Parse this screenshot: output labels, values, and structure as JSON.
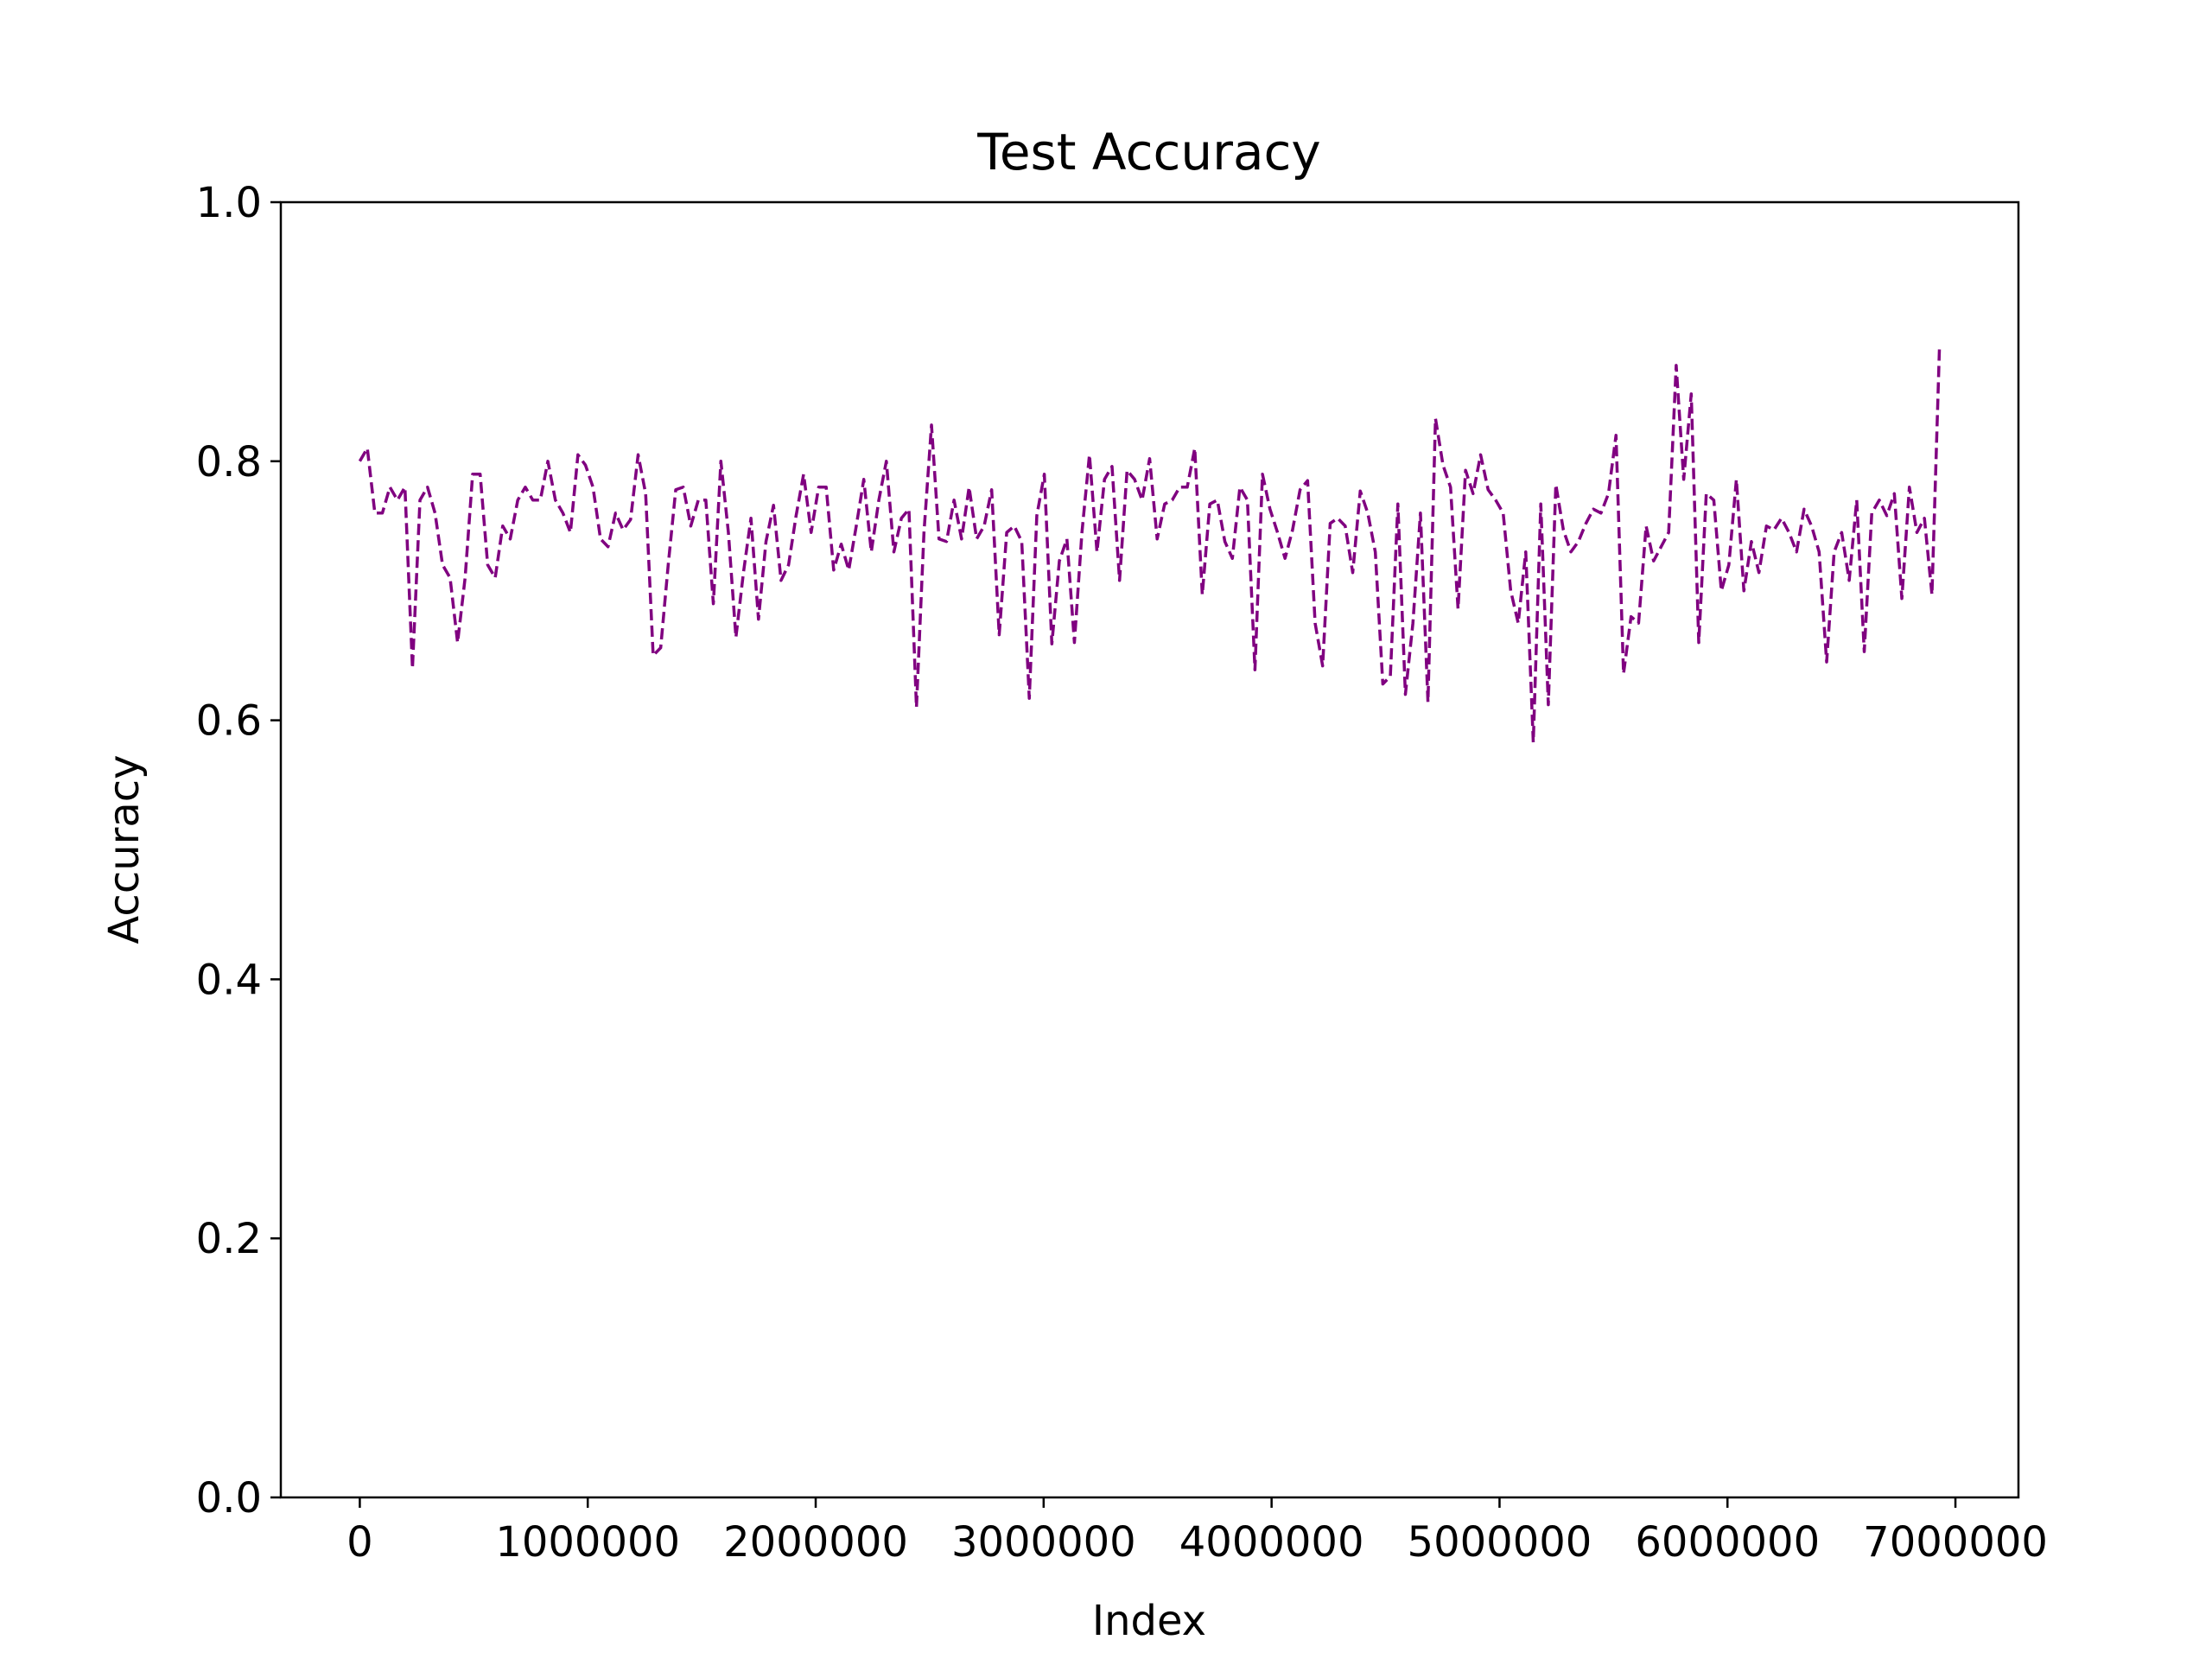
{
  "chart_data": {
    "type": "line",
    "title": "Test Accuracy",
    "xlabel": "Index",
    "ylabel": "Accuracy",
    "x": [
      0,
      33000,
      66000,
      99000,
      132000,
      165000,
      198000,
      231000,
      264000,
      297000,
      330000,
      363000,
      396000,
      429000,
      462000,
      495000,
      528000,
      561000,
      594000,
      627000,
      660000,
      693000,
      726000,
      759000,
      792000,
      825000,
      858000,
      891000,
      924000,
      957000,
      990000,
      1023000,
      1056000,
      1089000,
      1122000,
      1155000,
      1188000,
      1221000,
      1254000,
      1287000,
      1320000,
      1353000,
      1386000,
      1419000,
      1452000,
      1485000,
      1518000,
      1551000,
      1584000,
      1617000,
      1650000,
      1683000,
      1716000,
      1749000,
      1782000,
      1815000,
      1848000,
      1881000,
      1914000,
      1947000,
      1980000,
      2013000,
      2046000,
      2079000,
      2112000,
      2145000,
      2178000,
      2211000,
      2244000,
      2277000,
      2310000,
      2343000,
      2376000,
      2409000,
      2442000,
      2475000,
      2508000,
      2541000,
      2574000,
      2607000,
      2640000,
      2673000,
      2706000,
      2739000,
      2772000,
      2805000,
      2838000,
      2871000,
      2904000,
      2937000,
      2970000,
      3003000,
      3036000,
      3069000,
      3102000,
      3135000,
      3168000,
      3201000,
      3234000,
      3267000,
      3300000,
      3333000,
      3366000,
      3399000,
      3432000,
      3465000,
      3498000,
      3531000,
      3564000,
      3597000,
      3630000,
      3663000,
      3696000,
      3729000,
      3762000,
      3795000,
      3828000,
      3861000,
      3894000,
      3927000,
      3960000,
      3993000,
      4026000,
      4059000,
      4092000,
      4125000,
      4158000,
      4191000,
      4224000,
      4257000,
      4290000,
      4323000,
      4356000,
      4389000,
      4422000,
      4455000,
      4488000,
      4521000,
      4554000,
      4587000,
      4620000,
      4653000,
      4686000,
      4719000,
      4752000,
      4785000,
      4818000,
      4851000,
      4884000,
      4917000,
      4950000,
      4983000,
      5016000,
      5049000,
      5082000,
      5115000,
      5148000,
      5181000,
      5214000,
      5247000,
      5280000,
      5313000,
      5346000,
      5379000,
      5412000,
      5445000,
      5478000,
      5511000,
      5544000,
      5577000,
      5610000,
      5643000,
      5676000,
      5709000,
      5742000,
      5775000,
      5808000,
      5841000,
      5874000,
      5907000,
      5940000,
      5973000,
      6006000,
      6039000,
      6072000,
      6105000,
      6138000,
      6171000,
      6204000,
      6237000,
      6270000,
      6303000,
      6336000,
      6369000,
      6402000,
      6435000,
      6468000,
      6501000,
      6534000,
      6567000,
      6600000,
      6633000,
      6666000,
      6699000,
      6732000,
      6765000,
      6798000,
      6831000,
      6864000,
      6897000,
      6930000
    ],
    "series": [
      {
        "name": "Test Accuracy",
        "color": "#800080",
        "dashed": true,
        "values": [
          0.8,
          0.81,
          0.76,
          0.76,
          0.78,
          0.77,
          0.78,
          0.64,
          0.77,
          0.78,
          0.76,
          0.72,
          0.71,
          0.66,
          0.71,
          0.79,
          0.79,
          0.72,
          0.71,
          0.75,
          0.74,
          0.77,
          0.78,
          0.77,
          0.77,
          0.8,
          0.77,
          0.76,
          0.745,
          0.805,
          0.797,
          0.78,
          0.74,
          0.734,
          0.76,
          0.747,
          0.755,
          0.805,
          0.775,
          0.65,
          0.656,
          0.72,
          0.778,
          0.78,
          0.75,
          0.77,
          0.77,
          0.69,
          0.8,
          0.745,
          0.664,
          0.714,
          0.756,
          0.678,
          0.738,
          0.766,
          0.708,
          0.72,
          0.758,
          0.79,
          0.745,
          0.78,
          0.78,
          0.716,
          0.736,
          0.716,
          0.75,
          0.786,
          0.73,
          0.77,
          0.8,
          0.73,
          0.756,
          0.763,
          0.61,
          0.745,
          0.828,
          0.74,
          0.738,
          0.77,
          0.74,
          0.78,
          0.74,
          0.75,
          0.778,
          0.666,
          0.745,
          0.75,
          0.738,
          0.617,
          0.758,
          0.79,
          0.659,
          0.723,
          0.74,
          0.66,
          0.745,
          0.805,
          0.73,
          0.786,
          0.796,
          0.708,
          0.793,
          0.786,
          0.77,
          0.802,
          0.74,
          0.767,
          0.77,
          0.78,
          0.78,
          0.81,
          0.697,
          0.767,
          0.77,
          0.738,
          0.725,
          0.78,
          0.77,
          0.639,
          0.79,
          0.763,
          0.745,
          0.725,
          0.747,
          0.778,
          0.785,
          0.675,
          0.642,
          0.752,
          0.756,
          0.75,
          0.714,
          0.777,
          0.76,
          0.73,
          0.628,
          0.634,
          0.767,
          0.62,
          0.675,
          0.76,
          0.614,
          0.833,
          0.797,
          0.78,
          0.686,
          0.793,
          0.775,
          0.805,
          0.778,
          0.77,
          0.76,
          0.7,
          0.675,
          0.73,
          0.583,
          0.767,
          0.612,
          0.782,
          0.747,
          0.73,
          0.738,
          0.752,
          0.763,
          0.76,
          0.775,
          0.82,
          0.636,
          0.68,
          0.675,
          0.75,
          0.723,
          0.734,
          0.745,
          0.874,
          0.786,
          0.852,
          0.66,
          0.775,
          0.77,
          0.7,
          0.72,
          0.786,
          0.7,
          0.738,
          0.714,
          0.75,
          0.747,
          0.756,
          0.745,
          0.73,
          0.763,
          0.75,
          0.73,
          0.645,
          0.73,
          0.745,
          0.708,
          0.77,
          0.653,
          0.76,
          0.77,
          0.758,
          0.775,
          0.694,
          0.78,
          0.745,
          0.756,
          0.697,
          0.888
        ]
      }
    ],
    "xlim": [
      -346500,
      7276500
    ],
    "xticks": [
      0,
      1000000,
      2000000,
      3000000,
      4000000,
      5000000,
      6000000,
      7000000
    ],
    "ylim": [
      0,
      1
    ],
    "yticks": [
      {
        "value": 0,
        "label": "0.0"
      },
      0.2,
      0.4,
      0.6,
      0.8,
      {
        "value": 1,
        "label": "1.0"
      }
    ],
    "grid": false,
    "legend": false
  }
}
